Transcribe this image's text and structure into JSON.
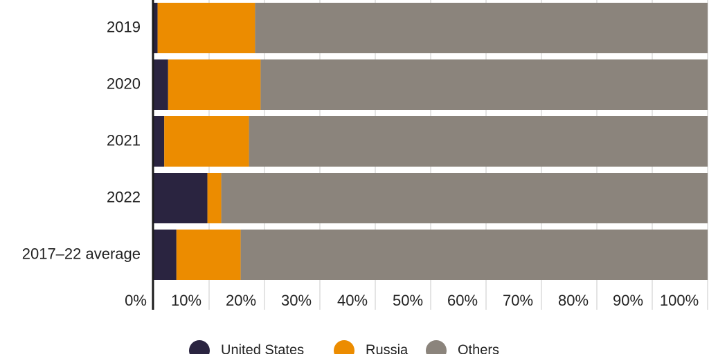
{
  "chart_data": {
    "type": "bar",
    "orientation": "horizontal",
    "stacked": true,
    "categories": [
      "2019",
      "2020",
      "2021",
      "2022",
      "2017–22 average"
    ],
    "series": [
      {
        "name": "United States",
        "color": "#2a2440",
        "values": [
          0.7,
          2.6,
          1.9,
          9.7,
          4.1
        ]
      },
      {
        "name": "Russia",
        "color": "#ec8c00",
        "values": [
          17.6,
          16.7,
          15.3,
          2.5,
          11.6
        ]
      },
      {
        "name": "Others",
        "color": "#8b847c",
        "values": [
          81.7,
          80.7,
          82.8,
          87.8,
          84.3
        ]
      }
    ],
    "xlim": [
      0,
      100
    ],
    "x_ticks": [
      "0%",
      "10%",
      "20%",
      "30%",
      "40%",
      "50%",
      "60%",
      "70%",
      "80%",
      "90%",
      "100%"
    ],
    "grid": true,
    "legend_position": "bottom"
  }
}
